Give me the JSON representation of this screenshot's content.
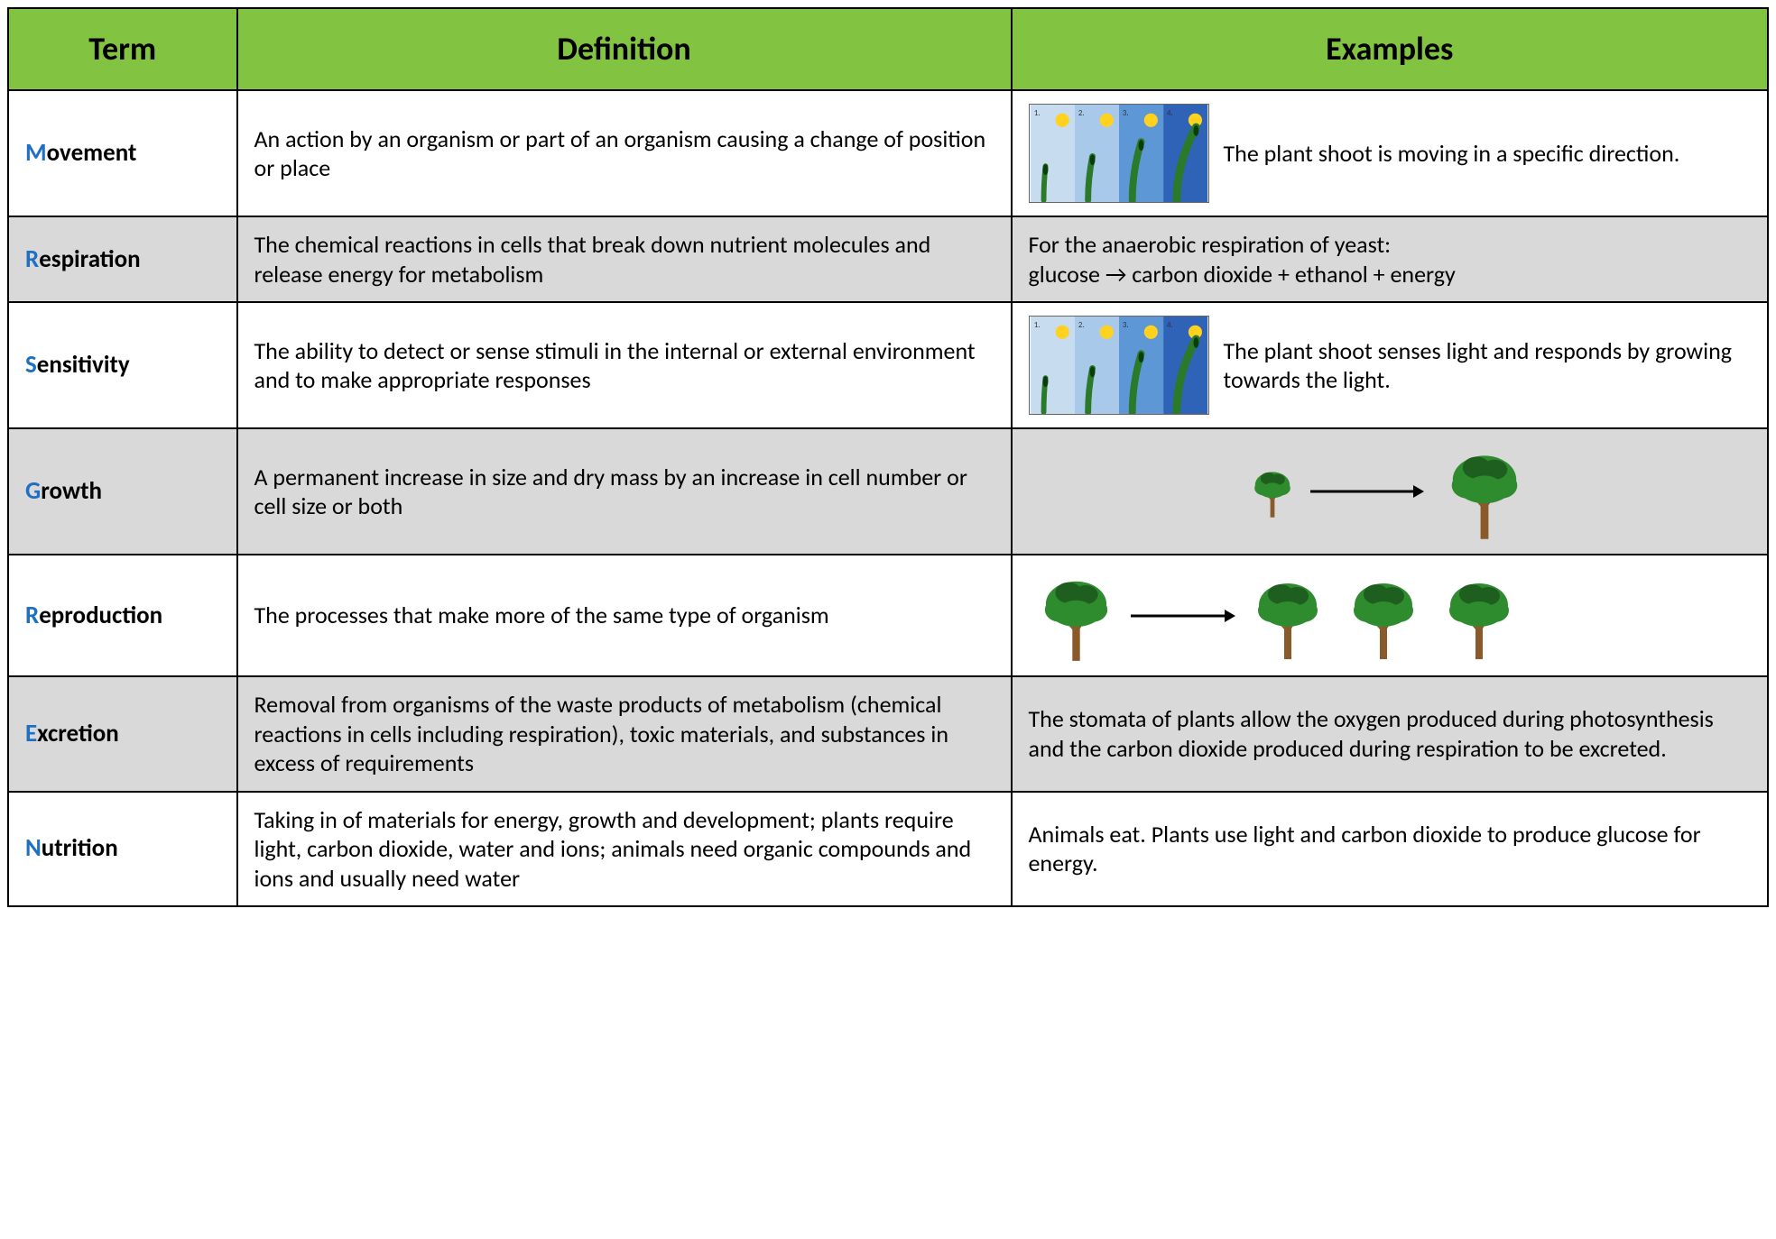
{
  "colors": {
    "header_bg": "#82c341",
    "border": "#000000",
    "row_shade": "#d9d9d9",
    "first_letter": "#1f6fc2",
    "text": "#000000",
    "tree_foliage": "#2e8b2e",
    "tree_foliage_dark": "#1e5e1e",
    "tree_trunk": "#8b5a2b",
    "arrow": "#000000",
    "sun": "#ffd21f",
    "sky_gradient": [
      "#c8dcf0",
      "#a9c9ea",
      "#5e97d6",
      "#2f63b7"
    ],
    "plant_stem": "#2a7a2a"
  },
  "typography": {
    "header_fontsize": 36,
    "header_fontweight": 700,
    "body_fontsize": 26,
    "term_fontsize": 27,
    "font_family": "Calibri"
  },
  "columns": [
    {
      "key": "term",
      "label": "Term",
      "width_pct": 13
    },
    {
      "key": "definition",
      "label": "Definition",
      "width_pct": 44
    },
    {
      "key": "examples",
      "label": "Examples",
      "width_pct": 43
    }
  ],
  "rows": [
    {
      "shaded": false,
      "term_first": "M",
      "term_rest": "ovement",
      "definition": "An action by an organism or part of an organism causing a change of position or place",
      "example_type": "plant_phototropism",
      "example_text": "The plant shoot is moving in a specific direction."
    },
    {
      "shaded": true,
      "term_first": "R",
      "term_rest": "espiration",
      "definition": "The chemical reactions in cells that break down nutrient molecules and release energy for metabolism",
      "example_type": "text",
      "example_text": "For the anaerobic respiration of yeast:\nglucose → carbon dioxide + ethanol + energy"
    },
    {
      "shaded": false,
      "term_first": "S",
      "term_rest": "ensitivity",
      "definition": "The ability to detect or sense stimuli in the internal or external environment and to make appropriate responses",
      "example_type": "plant_phototropism",
      "example_text": "The plant shoot senses light and responds by growing towards the light."
    },
    {
      "shaded": true,
      "term_first": "G",
      "term_rest": "rowth",
      "definition": "A permanent increase in size and dry mass by an increase in cell number or cell size or both",
      "example_type": "tree_growth",
      "example_text": ""
    },
    {
      "shaded": false,
      "term_first": "R",
      "term_rest": "eproduction",
      "definition": "The processes that make more of the same type of organism",
      "example_type": "tree_reproduction",
      "example_text": ""
    },
    {
      "shaded": true,
      "term_first": "E",
      "term_rest": "xcretion",
      "definition": "Removal from organisms of the waste products of metabolism (chemical reactions in cells including respiration), toxic materials, and substances in excess of requirements",
      "example_type": "text",
      "example_text": "The stomata of plants allow the oxygen produced during photosynthesis and the carbon dioxide produced during respiration to be excreted."
    },
    {
      "shaded": false,
      "term_first": "N",
      "term_rest": "utrition",
      "definition": "Taking in of materials for energy, growth and development; plants require light, carbon dioxide, water and ions; animals need organic compounds and ions and usually need water",
      "example_type": "text",
      "example_text": "Animals eat. Plants use light and carbon dioxide to produce glucose for energy."
    }
  ]
}
